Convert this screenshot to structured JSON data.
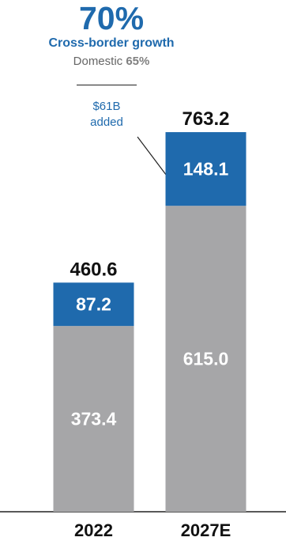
{
  "headline": {
    "value": "70%",
    "label": "Cross-border growth",
    "domestic_prefix": "Domestic",
    "domestic_value": "65%"
  },
  "annotation": {
    "line1": "$61B",
    "line2": "added"
  },
  "colors": {
    "headline": "#1f6aad",
    "cross_border": "#1f6aad",
    "domestic": "#a6a6a8",
    "total_label": "#111111",
    "segment_label": "#ffffff",
    "axis": "#222222"
  },
  "chart_data": {
    "type": "bar",
    "stacked": true,
    "categories": [
      "2022",
      "2027E"
    ],
    "series": [
      {
        "values": [
          373.4,
          615.0
        ],
        "labels": [
          "373.4",
          "615.0"
        ]
      },
      {
        "values": [
          87.2,
          148.1
        ],
        "labels": [
          "87.2",
          "148.1"
        ]
      }
    ],
    "totals": [
      460.6,
      763.2
    ],
    "total_labels": [
      "460.6",
      "763.2"
    ],
    "title": "",
    "xlabel": "",
    "ylabel": "",
    "ylim": [
      0,
      763.2
    ],
    "grid": false,
    "legend": "none"
  }
}
